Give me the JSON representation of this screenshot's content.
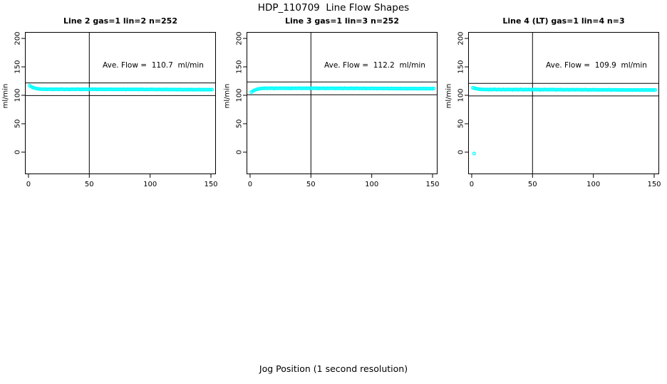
{
  "page": {
    "title": "HDP_110709  Line Flow Shapes",
    "xlabel": "Jog Position (1 second resolution)"
  },
  "chart_data": [
    {
      "type": "scatter",
      "title": "Line 2 gas=1 lin=2 n=252",
      "annotation": "Ave. Flow =  110.7  ml/min",
      "ave_flow": 110.7,
      "n": 252,
      "ylabel": "ml/min",
      "x_ticks": [
        0,
        50,
        100,
        150
      ],
      "y_ticks": [
        0,
        50,
        100,
        150,
        200
      ],
      "xlim": [
        -2.9,
        154.1
      ],
      "ylim": [
        -38.8,
        211.3
      ],
      "vline_x": 50,
      "hline_upper": 121.8,
      "hline_lower": 99.6,
      "marker_color": "#00FFFF",
      "x_start": 1,
      "x_step": 1.2,
      "y": [
        116.8,
        115.2,
        113.9,
        112.9,
        112.2,
        111.7,
        111.3,
        111.0,
        110.8,
        110.7,
        110.6,
        110.9,
        110.4,
        110.8,
        110.5,
        110.9,
        110.3,
        110.7,
        110.5,
        110.8,
        110.4,
        110.7,
        110.9,
        110.5,
        110.2,
        110.8,
        110.6,
        110.3,
        110.7,
        110.5,
        110.8,
        110.4,
        110.6,
        110.9,
        110.5,
        110.3,
        110.7,
        110.4,
        110.8,
        110.6,
        110.3,
        110.6,
        110.4,
        110.7,
        110.5,
        110.8,
        110.2,
        110.6,
        110.4,
        110.7,
        110.5,
        110.2,
        110.6,
        110.3,
        110.7,
        110.4,
        110.6,
        110.2,
        110.5,
        110.3,
        110.6,
        110.3,
        110.5,
        110.2,
        110.6,
        110.4,
        110.1,
        110.5,
        110.3,
        110.6,
        110.2,
        110.5,
        110.3,
        110.6,
        110.1,
        110.4,
        110.2,
        110.5,
        110.3,
        110.0,
        110.4,
        110.1,
        110.3,
        110.5,
        110.2,
        110.4,
        110.0,
        110.3,
        110.1,
        110.4,
        110.0,
        110.3,
        110.1,
        110.4,
        110.2,
        109.9,
        110.3,
        110.0,
        110.2,
        109.9,
        110.1,
        109.8,
        110.2,
        109.9,
        110.1,
        109.8,
        110.0,
        109.7,
        110.1,
        109.8,
        109.9,
        110.1,
        109.8,
        110.0,
        109.7,
        109.9,
        110.1,
        109.8,
        110.0,
        109.9,
        109.8,
        110.0,
        109.7,
        109.9,
        109.8,
        110.0
      ]
    },
    {
      "type": "scatter",
      "title": "Line 3 gas=1 lin=3 n=252",
      "annotation": "Ave. Flow =  112.2  ml/min",
      "ave_flow": 112.2,
      "n": 252,
      "ylabel": "ml/min",
      "x_ticks": [
        0,
        50,
        100,
        150
      ],
      "y_ticks": [
        0,
        50,
        100,
        150,
        200
      ],
      "xlim": [
        -2.9,
        154.1
      ],
      "ylim": [
        -38.8,
        211.3
      ],
      "vline_x": 50,
      "hline_upper": 123.4,
      "hline_lower": 101.0,
      "marker_color": "#00FFFF",
      "x_start": 1,
      "x_step": 1.2,
      "y": [
        105.6,
        107.2,
        108.6,
        109.7,
        110.6,
        111.2,
        111.7,
        112.0,
        112.2,
        112.3,
        112.4,
        112.1,
        112.5,
        112.2,
        112.6,
        112.3,
        112.0,
        112.4,
        112.2,
        112.5,
        112.3,
        112.6,
        112.2,
        112.4,
        112.1,
        112.5,
        112.3,
        112.0,
        112.4,
        112.2,
        112.5,
        112.2,
        112.4,
        112.6,
        112.3,
        112.1,
        112.5,
        112.2,
        112.4,
        112.3,
        112.1,
        112.4,
        112.2,
        112.5,
        112.3,
        112.6,
        112.0,
        112.4,
        112.2,
        112.5,
        112.3,
        112.0,
        112.4,
        112.1,
        112.5,
        112.2,
        112.4,
        112.0,
        112.3,
        112.1,
        112.4,
        112.1,
        112.3,
        112.0,
        112.4,
        112.2,
        111.9,
        112.3,
        112.1,
        112.4,
        112.0,
        112.3,
        112.1,
        112.4,
        111.9,
        112.2,
        112.0,
        112.3,
        112.1,
        111.8,
        112.2,
        111.9,
        112.1,
        112.3,
        112.0,
        112.2,
        111.8,
        112.1,
        111.9,
        112.2,
        111.8,
        112.1,
        111.9,
        112.2,
        112.0,
        111.7,
        112.1,
        111.8,
        112.0,
        111.7,
        111.9,
        111.6,
        112.0,
        111.7,
        111.9,
        111.6,
        111.8,
        111.5,
        111.9,
        111.6,
        111.7,
        111.9,
        111.6,
        111.8,
        111.5,
        111.7,
        111.9,
        111.6,
        111.8,
        111.7,
        111.6,
        111.8,
        111.5,
        111.7,
        111.6,
        111.8
      ]
    },
    {
      "type": "scatter",
      "title": "Line 4 (LT) gas=1 lin=4 n=3",
      "annotation": "Ave. Flow =  109.9  ml/min",
      "ave_flow": 109.9,
      "n": 3,
      "ylabel": "ml/min",
      "x_ticks": [
        0,
        50,
        100,
        150
      ],
      "y_ticks": [
        0,
        50,
        100,
        150,
        200
      ],
      "xlim": [
        -2.9,
        154.1
      ],
      "ylim": [
        -38.8,
        211.3
      ],
      "vline_x": 50,
      "hline_upper": 120.9,
      "hline_lower": 98.9,
      "marker_color": "#00FFFF",
      "x_start": 1,
      "x_step": 1.2,
      "outlier": {
        "x": 2,
        "y": -2.5
      },
      "y": [
        113.2,
        112.4,
        111.8,
        111.3,
        110.9,
        110.6,
        110.4,
        110.3,
        110.2,
        110.1,
        110.3,
        109.8,
        110.4,
        109.9,
        110.2,
        110.5,
        109.7,
        110.1,
        110.4,
        109.8,
        110.0,
        110.4,
        109.7,
        110.2,
        109.9,
        110.3,
        110.0,
        109.6,
        110.2,
        109.9,
        110.3,
        109.8,
        110.1,
        110.4,
        109.9,
        109.6,
        110.2,
        109.8,
        110.3,
        110.0,
        109.7,
        110.1,
        109.9,
        110.3,
        109.8,
        110.2,
        109.5,
        110.0,
        109.8,
        110.2,
        110.0,
        109.6,
        110.1,
        109.8,
        110.2,
        109.9,
        110.1,
        109.5,
        109.9,
        109.7,
        110.1,
        109.7,
        109.9,
        109.5,
        110.0,
        109.8,
        109.4,
        109.9,
        109.7,
        110.0,
        109.6,
        109.9,
        109.7,
        110.0,
        109.4,
        109.8,
        109.6,
        109.9,
        109.7,
        109.3,
        109.8,
        109.4,
        109.7,
        109.9,
        109.5,
        109.8,
        109.3,
        109.7,
        109.5,
        109.8,
        109.4,
        109.7,
        109.5,
        109.8,
        109.6,
        109.2,
        109.7,
        109.4,
        109.6,
        109.3,
        109.5,
        109.2,
        109.6,
        109.3,
        109.5,
        109.2,
        109.4,
        109.1,
        109.5,
        109.2,
        109.3,
        109.5,
        109.2,
        109.4,
        109.1,
        109.3,
        109.5,
        109.2,
        109.4,
        109.3,
        109.2,
        109.4,
        109.1,
        109.3,
        109.2,
        109.4
      ]
    }
  ]
}
